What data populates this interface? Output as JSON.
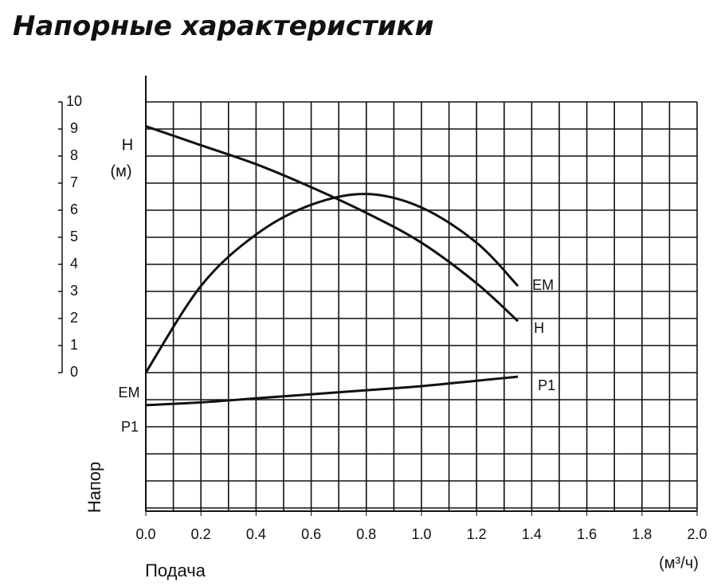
{
  "chart_data": {
    "type": "line",
    "title": "Напорные характеристики",
    "xlabel": "Подача",
    "xunit": "(м³/ч)",
    "ylabel": "Напор",
    "y_axis_label_lines": [
      "H",
      "(м)"
    ],
    "left_labels": [
      "EM",
      "P1"
    ],
    "x": [
      0,
      0.2,
      0.4,
      0.6,
      0.8,
      1.0,
      1.2,
      1.35
    ],
    "series": [
      {
        "name": "EM",
        "color": "#111111",
        "values": [
          0,
          3.2,
          5.1,
          6.2,
          6.6,
          6.1,
          4.8,
          3.2
        ]
      },
      {
        "name": "H",
        "color": "#111111",
        "values": [
          9.1,
          8.4,
          7.7,
          6.85,
          5.9,
          4.8,
          3.3,
          1.9
        ]
      },
      {
        "name": "P1",
        "color": "#111111",
        "values": [
          -1.2,
          -1.1,
          -0.95,
          -0.8,
          -0.65,
          -0.5,
          -0.3,
          -0.15
        ]
      }
    ],
    "xlim": [
      0,
      2.0
    ],
    "ylim": [
      -5,
      10
    ],
    "xticks": [
      {
        "value": 0,
        "label": "0.0"
      },
      0.2,
      0.4,
      0.6,
      0.8,
      {
        "value": 1,
        "label": "1.0"
      },
      1.2,
      1.4,
      1.6,
      1.8,
      {
        "value": 2,
        "label": "2.0"
      }
    ],
    "yticks": [
      0,
      1,
      2,
      3,
      4,
      5,
      6,
      7,
      8,
      9,
      10
    ],
    "grid": true
  }
}
